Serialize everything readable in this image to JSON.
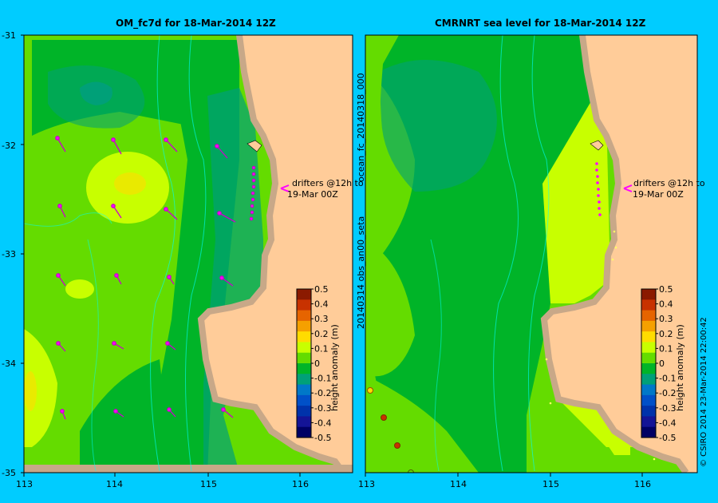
{
  "left_panel": {
    "title": "OM_fc7d for 18-Mar-2014 12Z",
    "drifter_note_1": "drifters @12h to",
    "drifter_note_2": "19-Mar 00Z",
    "x_ticks": [
      "113",
      "114",
      "115",
      "116"
    ],
    "y_ticks": [
      "-31",
      "-32",
      "-33",
      "-34",
      "-35"
    ]
  },
  "right_panel": {
    "title": "CMRNRT sea level  for 18-Mar-2014 12Z",
    "drifter_note_1": "drifters @12h to",
    "drifter_note_2": "19-Mar 00Z",
    "x_ticks": [
      "113",
      "114",
      "115",
      "116"
    ],
    "side_label_a": "ocean_fc_20140318_000",
    "side_label_b": "20140314 obs_an00_seta"
  },
  "colorbar": {
    "label": "height anomaly (m)",
    "ticks": [
      "0.5",
      "0.4",
      "0.3",
      "0.2",
      "0.1",
      "0",
      "-0.1",
      "-0.2",
      "-0.3",
      "-0.4",
      "-0.5"
    ],
    "colors": [
      "#8b1a00",
      "#c83200",
      "#e66400",
      "#f5a000",
      "#ffdc00",
      "#c8ff00",
      "#64dc00",
      "#00b428",
      "#00a078",
      "#0078c8",
      "#0050c8",
      "#0032aa",
      "#141496",
      "#000064"
    ]
  },
  "credit": "© CSIRO 2014   23-Mar-2014 22:00:42",
  "colors": {
    "background": "#00ccff",
    "land": "#ffcc99",
    "coast": "#c8a888",
    "drifter": "#ff00ff"
  }
}
